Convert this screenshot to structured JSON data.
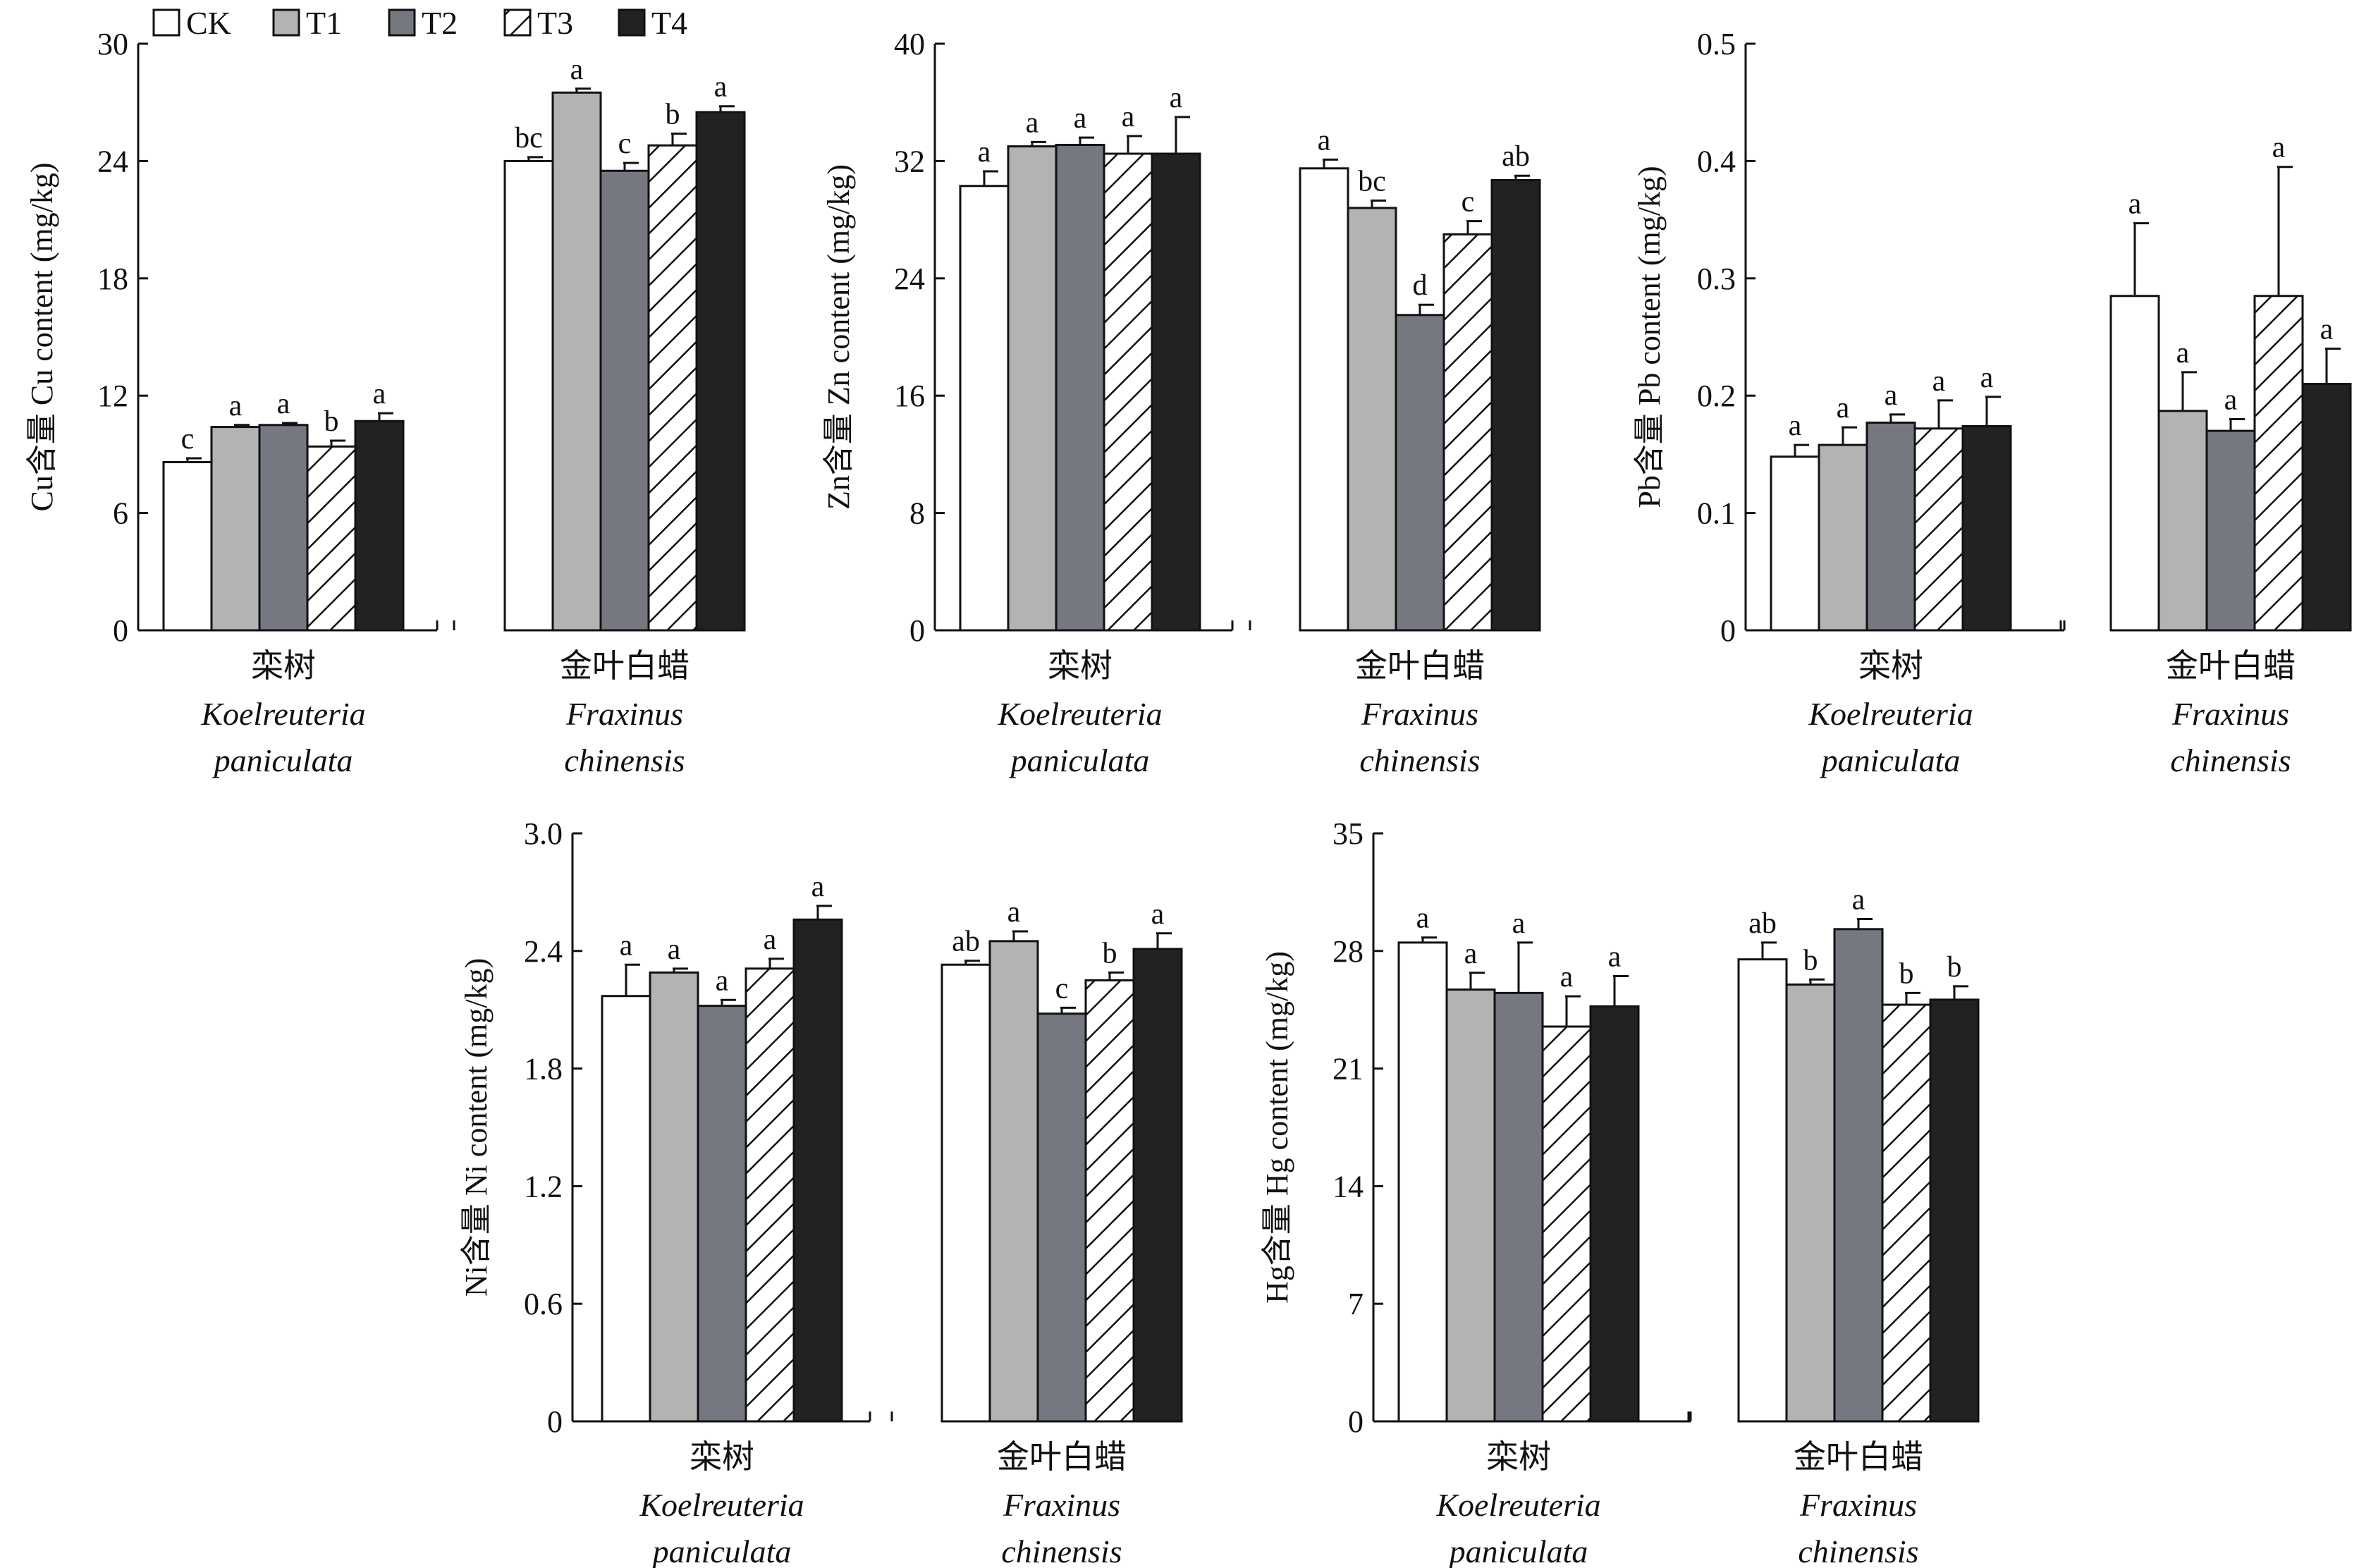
{
  "colors": {
    "CK": "#ffffff",
    "T1": "#b3b3b3",
    "T2": "#757880",
    "T3": "hatch",
    "T4": "#222222"
  },
  "legend": {
    "placement": "top-left",
    "entries": [
      "CK",
      "T1",
      "T2",
      "T3",
      "T4"
    ]
  },
  "chart_data": [
    {
      "type": "bar",
      "ylabel": "Cu含量 Cu content (mg/kg)",
      "ylim": [
        0,
        30
      ],
      "yticks": [
        "0",
        "6",
        "12",
        "18",
        "24",
        "30"
      ],
      "categories": [
        {
          "cn": "栾树",
          "latin1": "Koelreuteria",
          "latin2": "paniculata"
        },
        {
          "cn": "金叶白蜡",
          "latin1": "Fraxinus",
          "latin2": "chinensis"
        }
      ],
      "series": [
        {
          "name": "CK",
          "values": [
            8.6,
            24.0
          ],
          "errors": [
            0.2,
            0.2
          ],
          "labels": [
            "c",
            "bc"
          ]
        },
        {
          "name": "T1",
          "values": [
            10.4,
            27.5
          ],
          "errors": [
            0.1,
            0.2
          ],
          "labels": [
            "a",
            "a"
          ]
        },
        {
          "name": "T2",
          "values": [
            10.5,
            23.5
          ],
          "errors": [
            0.1,
            0.4
          ],
          "labels": [
            "a",
            "c"
          ]
        },
        {
          "name": "T3",
          "values": [
            9.4,
            24.8
          ],
          "errors": [
            0.3,
            0.6
          ],
          "labels": [
            "b",
            "b"
          ]
        },
        {
          "name": "T4",
          "values": [
            10.7,
            26.5
          ],
          "errors": [
            0.4,
            0.3
          ],
          "labels": [
            "a",
            "a"
          ]
        }
      ]
    },
    {
      "type": "bar",
      "ylabel": "Zn含量 Zn content (mg/kg)",
      "ylim": [
        0,
        40
      ],
      "yticks": [
        "0",
        "8",
        "16",
        "24",
        "32",
        "40"
      ],
      "categories": [
        {
          "cn": "栾树",
          "latin1": "Koelreuteria",
          "latin2": "paniculata"
        },
        {
          "cn": "金叶白蜡",
          "latin1": "Fraxinus",
          "latin2": "chinensis"
        }
      ],
      "series": [
        {
          "name": "CK",
          "values": [
            30.3,
            31.5
          ],
          "errors": [
            1.0,
            0.6
          ],
          "labels": [
            "a",
            "a"
          ]
        },
        {
          "name": "T1",
          "values": [
            33.0,
            28.8
          ],
          "errors": [
            0.3,
            0.5
          ],
          "labels": [
            "a",
            "bc"
          ]
        },
        {
          "name": "T2",
          "values": [
            33.1,
            21.5
          ],
          "errors": [
            0.5,
            0.7
          ],
          "labels": [
            "a",
            "d"
          ]
        },
        {
          "name": "T3",
          "values": [
            32.5,
            27.0
          ],
          "errors": [
            1.2,
            0.9
          ],
          "labels": [
            "a",
            "c"
          ]
        },
        {
          "name": "T4",
          "values": [
            32.5,
            30.7
          ],
          "errors": [
            2.5,
            0.3
          ],
          "labels": [
            "a",
            "ab"
          ]
        }
      ]
    },
    {
      "type": "bar",
      "ylabel": "Pb含量 Pb content (mg/kg)",
      "ylim": [
        0,
        0.5
      ],
      "yticks": [
        "0",
        "0.1",
        "0.2",
        "0.3",
        "0.4",
        "0.5"
      ],
      "categories": [
        {
          "cn": "栾树",
          "latin1": "Koelreuteria",
          "latin2": "paniculata"
        },
        {
          "cn": "金叶白蜡",
          "latin1": "Fraxinus",
          "latin2": "chinensis"
        }
      ],
      "series": [
        {
          "name": "CK",
          "values": [
            0.148,
            0.285
          ],
          "errors": [
            0.01,
            0.062
          ],
          "labels": [
            "a",
            "a"
          ]
        },
        {
          "name": "T1",
          "values": [
            0.158,
            0.187
          ],
          "errors": [
            0.015,
            0.033
          ],
          "labels": [
            "a",
            "a"
          ]
        },
        {
          "name": "T2",
          "values": [
            0.177,
            0.17
          ],
          "errors": [
            0.007,
            0.01
          ],
          "labels": [
            "a",
            "a"
          ]
        },
        {
          "name": "T3",
          "values": [
            0.172,
            0.285
          ],
          "errors": [
            0.024,
            0.11
          ],
          "labels": [
            "a",
            "a"
          ]
        },
        {
          "name": "T4",
          "values": [
            0.174,
            0.21
          ],
          "errors": [
            0.025,
            0.03
          ],
          "labels": [
            "a",
            "a"
          ]
        }
      ]
    },
    {
      "type": "bar",
      "ylabel": "Ni含量 Ni content (mg/kg)",
      "ylim": [
        0,
        3.0
      ],
      "yticks": [
        "0",
        "0.6",
        "1.2",
        "1.8",
        "2.4",
        "3.0"
      ],
      "categories": [
        {
          "cn": "栾树",
          "latin1": "Koelreuteria",
          "latin2": "paniculata"
        },
        {
          "cn": "金叶白蜡",
          "latin1": "Fraxinus",
          "latin2": "chinensis"
        }
      ],
      "series": [
        {
          "name": "CK",
          "values": [
            2.17,
            2.33
          ],
          "errors": [
            0.16,
            0.02
          ],
          "labels": [
            "a",
            "ab"
          ]
        },
        {
          "name": "T1",
          "values": [
            2.29,
            2.45
          ],
          "errors": [
            0.02,
            0.05
          ],
          "labels": [
            "a",
            "a"
          ]
        },
        {
          "name": "T2",
          "values": [
            2.12,
            2.08
          ],
          "errors": [
            0.03,
            0.03
          ],
          "labels": [
            "a",
            "c"
          ]
        },
        {
          "name": "T3",
          "values": [
            2.31,
            2.25
          ],
          "errors": [
            0.05,
            0.04
          ],
          "labels": [
            "a",
            "b"
          ]
        },
        {
          "name": "T4",
          "values": [
            2.56,
            2.41
          ],
          "errors": [
            0.07,
            0.08
          ],
          "labels": [
            "a",
            "a"
          ]
        }
      ]
    },
    {
      "type": "bar",
      "ylabel": "Hg含量 Hg content (mg/kg)",
      "ylim": [
        0,
        35
      ],
      "yticks": [
        "0",
        "7",
        "14",
        "21",
        "28",
        "35"
      ],
      "categories": [
        {
          "cn": "栾树",
          "latin1": "Koelreuteria",
          "latin2": "paniculata"
        },
        {
          "cn": "金叶白蜡",
          "latin1": "Fraxinus",
          "latin2": "chinensis"
        }
      ],
      "series": [
        {
          "name": "CK",
          "values": [
            28.5,
            27.5
          ],
          "errors": [
            0.3,
            1.0
          ],
          "labels": [
            "a",
            "ab"
          ]
        },
        {
          "name": "T1",
          "values": [
            25.7,
            26.0
          ],
          "errors": [
            1.0,
            0.3
          ],
          "labels": [
            "a",
            "b"
          ]
        },
        {
          "name": "T2",
          "values": [
            25.5,
            29.3
          ],
          "errors": [
            3.0,
            0.6
          ],
          "labels": [
            "a",
            "a"
          ]
        },
        {
          "name": "T3",
          "values": [
            23.5,
            24.8
          ],
          "errors": [
            1.8,
            0.7
          ],
          "labels": [
            "a",
            "b"
          ]
        },
        {
          "name": "T4",
          "values": [
            24.7,
            25.1
          ],
          "errors": [
            1.8,
            0.8
          ],
          "labels": [
            "a",
            "b"
          ]
        }
      ]
    }
  ]
}
